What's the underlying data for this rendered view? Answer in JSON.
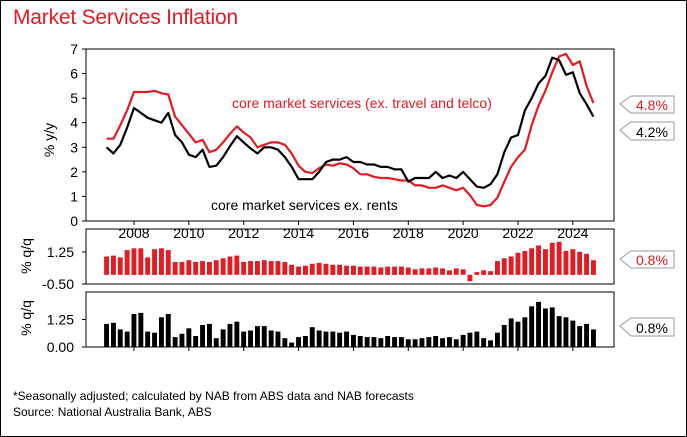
{
  "title": "Market Services Inflation",
  "footnote": {
    "line1": "*Seasonally adjusted; calculated by NAB from ABS data and NAB forecasts",
    "line2": "Source: National Australia Bank, ABS"
  },
  "colors": {
    "red": "#e31b23",
    "black": "#000000"
  },
  "chart_data": [
    {
      "type": "line",
      "title": "",
      "ylabel": "% y/y",
      "ylim": [
        0,
        7
      ],
      "yticks": [
        "0",
        "1",
        "2",
        "3",
        "4",
        "5",
        "6",
        "7"
      ],
      "xlim": [
        2006.25,
        2025.5
      ],
      "xticks": [
        "2008",
        "2010",
        "2012",
        "2014",
        "2016",
        "2018",
        "2020",
        "2022",
        "2024"
      ],
      "annotations": [
        "core market services (ex. travel and telco)",
        "core market services ex. rents"
      ],
      "series": [
        {
          "name": "core market services (ex. travel and telco)",
          "color": "#e31b23",
          "end_label": "4.8%",
          "x": [
            2007.0,
            2007.25,
            2007.5,
            2007.75,
            2008.0,
            2008.25,
            2008.5,
            2008.75,
            2009.0,
            2009.25,
            2009.5,
            2009.75,
            2010.0,
            2010.25,
            2010.5,
            2010.75,
            2011.0,
            2011.25,
            2011.5,
            2011.75,
            2012.0,
            2012.25,
            2012.5,
            2012.75,
            2013.0,
            2013.25,
            2013.5,
            2013.75,
            2014.0,
            2014.25,
            2014.5,
            2014.75,
            2015.0,
            2015.25,
            2015.5,
            2015.75,
            2016.0,
            2016.25,
            2016.5,
            2016.75,
            2017.0,
            2017.25,
            2017.5,
            2017.75,
            2018.0,
            2018.25,
            2018.5,
            2018.75,
            2019.0,
            2019.25,
            2019.5,
            2019.75,
            2020.0,
            2020.25,
            2020.5,
            2020.75,
            2021.0,
            2021.25,
            2021.5,
            2021.75,
            2022.0,
            2022.25,
            2022.5,
            2022.75,
            2023.0,
            2023.25,
            2023.5,
            2023.75,
            2024.0,
            2024.25,
            2024.5,
            2024.75
          ],
          "y": [
            3.35,
            3.35,
            3.9,
            4.5,
            5.25,
            5.25,
            5.25,
            5.3,
            5.2,
            5.15,
            4.25,
            3.9,
            3.55,
            3.2,
            3.3,
            2.8,
            2.9,
            3.2,
            3.55,
            3.85,
            3.6,
            3.4,
            3.0,
            3.1,
            3.2,
            3.2,
            3.1,
            2.75,
            2.25,
            2.0,
            1.95,
            2.15,
            2.3,
            2.25,
            2.35,
            2.3,
            2.15,
            1.9,
            1.9,
            1.8,
            1.75,
            1.75,
            1.7,
            1.65,
            1.65,
            1.45,
            1.45,
            1.35,
            1.35,
            1.45,
            1.35,
            1.25,
            1.35,
            1.05,
            0.65,
            0.6,
            0.65,
            0.95,
            1.6,
            2.2,
            2.6,
            2.9,
            3.9,
            4.7,
            5.3,
            6.05,
            6.7,
            6.8,
            6.35,
            6.5,
            5.5,
            4.8
          ]
        },
        {
          "name": "core market services ex. rents",
          "color": "#000000",
          "end_label": "4.2%",
          "x": [
            2007.0,
            2007.25,
            2007.5,
            2007.75,
            2008.0,
            2008.25,
            2008.5,
            2008.75,
            2009.0,
            2009.25,
            2009.5,
            2009.75,
            2010.0,
            2010.25,
            2010.5,
            2010.75,
            2011.0,
            2011.25,
            2011.5,
            2011.75,
            2012.0,
            2012.25,
            2012.5,
            2012.75,
            2013.0,
            2013.25,
            2013.5,
            2013.75,
            2014.0,
            2014.25,
            2014.5,
            2014.75,
            2015.0,
            2015.25,
            2015.5,
            2015.75,
            2016.0,
            2016.25,
            2016.5,
            2016.75,
            2017.0,
            2017.25,
            2017.5,
            2017.75,
            2018.0,
            2018.25,
            2018.5,
            2018.75,
            2019.0,
            2019.25,
            2019.5,
            2019.75,
            2020.0,
            2020.25,
            2020.5,
            2020.75,
            2021.0,
            2021.25,
            2021.5,
            2021.75,
            2022.0,
            2022.25,
            2022.5,
            2022.75,
            2023.0,
            2023.25,
            2023.5,
            2023.75,
            2024.0,
            2024.25,
            2024.5,
            2024.75
          ],
          "y": [
            3.0,
            2.75,
            3.1,
            3.8,
            4.6,
            4.4,
            4.2,
            4.1,
            4.0,
            4.4,
            3.5,
            3.2,
            2.7,
            2.6,
            2.9,
            2.2,
            2.25,
            2.6,
            3.05,
            3.45,
            3.2,
            2.95,
            2.75,
            3.0,
            3.0,
            2.9,
            2.6,
            2.2,
            1.7,
            1.7,
            1.7,
            2.0,
            2.4,
            2.5,
            2.5,
            2.6,
            2.4,
            2.4,
            2.3,
            2.3,
            2.2,
            2.2,
            2.1,
            2.1,
            1.6,
            1.75,
            1.75,
            1.75,
            2.0,
            1.75,
            1.85,
            1.75,
            2.0,
            1.7,
            1.4,
            1.35,
            1.5,
            1.9,
            2.8,
            3.4,
            3.5,
            4.5,
            5.0,
            5.6,
            5.9,
            6.65,
            6.55,
            5.95,
            6.05,
            5.2,
            4.75,
            4.25
          ]
        }
      ]
    },
    {
      "type": "bar",
      "title": "",
      "ylabel": "% q/q",
      "ylim": [
        -0.5,
        2.5
      ],
      "yticks": [
        "1.25",
        "-0.50"
      ],
      "series": [
        {
          "name": "core market services (ex. travel and telco)",
          "color": "#e31b23",
          "end_label": "0.8%",
          "values": [
            1.0,
            1.05,
            0.95,
            1.35,
            1.45,
            1.45,
            0.95,
            1.4,
            1.45,
            1.35,
            0.7,
            0.7,
            0.8,
            0.7,
            0.75,
            0.7,
            0.8,
            0.9,
            1.0,
            1.05,
            0.7,
            0.75,
            0.75,
            0.8,
            0.75,
            0.75,
            0.7,
            0.55,
            0.45,
            0.5,
            0.6,
            0.65,
            0.6,
            0.55,
            0.55,
            0.5,
            0.5,
            0.45,
            0.45,
            0.45,
            0.4,
            0.45,
            0.45,
            0.45,
            0.4,
            0.3,
            0.35,
            0.35,
            0.4,
            0.35,
            0.25,
            0.35,
            0.3,
            -0.35,
            0.15,
            0.25,
            0.2,
            0.75,
            0.9,
            1.0,
            1.2,
            1.3,
            1.45,
            1.6,
            1.4,
            1.75,
            1.8,
            1.3,
            1.4,
            1.25,
            1.15,
            0.8
          ]
        }
      ]
    },
    {
      "type": "bar",
      "title": "",
      "ylabel": "% q/q",
      "ylim": [
        0,
        2.5
      ],
      "yticks": [
        "1.25",
        "0.00"
      ],
      "series": [
        {
          "name": "core market services ex. rents",
          "color": "#000000",
          "end_label": "0.8%",
          "values": [
            1.05,
            1.1,
            0.8,
            0.7,
            1.5,
            1.55,
            0.7,
            0.65,
            1.35,
            1.5,
            0.45,
            0.6,
            0.85,
            0.5,
            1.0,
            1.05,
            0.4,
            0.8,
            1.05,
            1.15,
            0.7,
            0.75,
            0.95,
            0.95,
            0.75,
            0.7,
            0.4,
            0.2,
            0.45,
            0.5,
            0.9,
            0.75,
            0.7,
            0.7,
            0.65,
            0.7,
            0.55,
            0.5,
            0.45,
            0.45,
            0.4,
            0.5,
            0.45,
            0.45,
            0.35,
            0.35,
            0.4,
            0.45,
            0.5,
            0.4,
            0.45,
            0.35,
            0.55,
            0.65,
            0.7,
            0.4,
            0.3,
            0.65,
            1.0,
            1.3,
            1.15,
            1.35,
            1.85,
            2.05,
            1.75,
            1.8,
            1.4,
            1.35,
            1.2,
            0.95,
            1.05,
            0.8
          ]
        }
      ]
    }
  ]
}
